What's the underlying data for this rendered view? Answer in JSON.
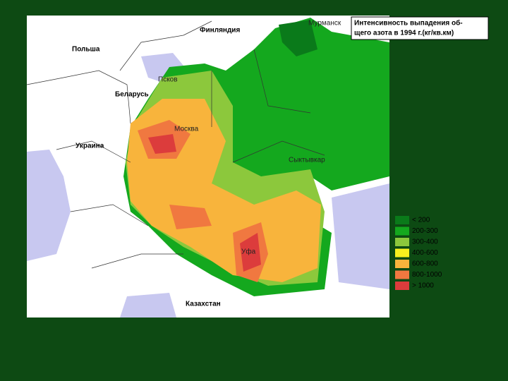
{
  "title": [
    "Интенсивность выпадения об-",
    "щего азота в 1994 г.(кг/кв.км)"
  ],
  "labels": [
    "Мурманск",
    "Финляндия",
    "Польша",
    "Псков",
    "Беларусь",
    "Москва",
    "Украина",
    "Сыктывкар",
    "Уфа",
    "Казахстан"
  ],
  "legend": [
    {
      "label": "< 200",
      "color": "#0a7a1a"
    },
    {
      "label": "200-300",
      "color": "#14a81e"
    },
    {
      "label": "300-400",
      "color": "#8cc83c"
    },
    {
      "label": "400-600",
      "color": "#f8f01e"
    },
    {
      "label": "600-800",
      "color": "#f8b43c"
    },
    {
      "label": "800-1000",
      "color": "#f07840"
    },
    {
      "label": "> 1000",
      "color": "#dc3c3c"
    }
  ]
}
